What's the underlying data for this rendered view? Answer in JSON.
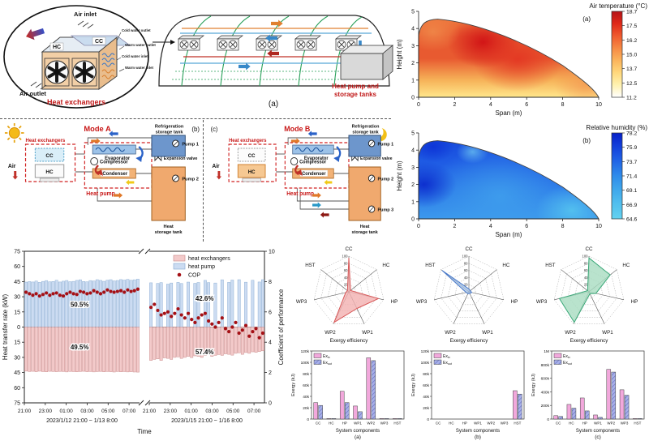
{
  "callout": {
    "air_inlet": "Air inlet",
    "cc": "CC",
    "hc": "HC",
    "cold_water_outlet": "Cold water outlet",
    "warm_water_outlet": "Warm water outlet",
    "cold_water_inlet": "Cold water inlet",
    "warm_water_inlet": "Warm water inlet",
    "air_outlet": "Air outlet",
    "title": "Heat exchangers"
  },
  "greenhouse": {
    "label_line1": "Heat pump and",
    "label_line2": "storage tanks",
    "panel_label": "(a)"
  },
  "mode_a": {
    "panel_label": "(b)",
    "title": "Mode A",
    "heat_exchangers": "Heat exchangers",
    "cc": "CC",
    "hc": "HC",
    "air": "Air",
    "evaporator": "Evaporator",
    "compressor": "Compressor",
    "condenser": "Condenser",
    "heat_pump": "Heat pump",
    "expansion_valve": "Expansion valve",
    "refrigeration_tank_line1": "Refrigeration",
    "refrigeration_tank_line2": "storage tank",
    "pump1": "Pump 1",
    "pump2": "Pump 2",
    "heat_tank_line1": "Heat",
    "heat_tank_line2": "storage tank"
  },
  "mode_b": {
    "panel_label": "(c)",
    "title": "Mode B",
    "heat_exchangers": "Heat exchangers",
    "cc": "CC",
    "hc": "HC",
    "air": "Air",
    "evaporator": "Evaporator",
    "compressor": "Compressor",
    "condenser": "Condenser",
    "heat_pump": "Heat pump",
    "expansion_valve": "Expansion valve",
    "refrigeration_tank_line1": "Refrigeration",
    "refrigeration_tank_line2": "storage tank",
    "pump1": "Pump 1",
    "pump2": "Pump 2",
    "pump3": "Pump 3",
    "heat_tank_line1": "Heat",
    "heat_tank_line2": "storage tank"
  },
  "chart_data": [
    {
      "type": "heatmap",
      "id": "air-temperature",
      "title": "Air temperature (°C)",
      "panel_label": "(a)",
      "xlabel": "Span (m)",
      "ylabel": "Height (m)",
      "xlim": [
        0,
        10
      ],
      "ylim": [
        0,
        5
      ],
      "xticks": [
        0,
        2,
        4,
        6,
        8,
        10
      ],
      "yticks": [
        0,
        1,
        2,
        3,
        4,
        5
      ],
      "colorbar": {
        "ticks": [
          18.7,
          17.5,
          16.2,
          15.0,
          13.7,
          12.5,
          11.2
        ],
        "stops": [
          "#b51318",
          "#e02818",
          "#ef5a2e",
          "#f68a44",
          "#fbb45c",
          "#ffd87c",
          "#fff2b0",
          "#ffffff"
        ]
      },
      "field": {
        "base_stops": [
          {
            "off": 0,
            "color": "#ef8140"
          },
          {
            "off": 0.3,
            "color": "#e85a30"
          },
          {
            "off": 0.55,
            "color": "#e85a30"
          },
          {
            "off": 0.8,
            "color": "#f6b258"
          },
          {
            "off": 1,
            "color": "#ffe78c"
          }
        ],
        "spots": [
          {
            "x": 3.6,
            "y": 3.2,
            "r": 2.0,
            "color": "#d01015",
            "opacity": 0.95
          },
          {
            "x": 5.5,
            "y": 2.2,
            "r": 2.5,
            "color": "#e23020",
            "opacity": 0.8
          },
          {
            "x": 0.8,
            "y": 3.8,
            "r": 1.5,
            "color": "#f08a4a",
            "opacity": 0.85
          },
          {
            "x": 9.3,
            "y": 0.8,
            "r": 1.8,
            "color": "#f49a52",
            "opacity": 0.85
          }
        ]
      },
      "reading": "hottest ~18.7 °C around span 3-4 m at height 3-3.5 m; coolest ~11-13 °C along the floor"
    },
    {
      "type": "heatmap",
      "id": "relative-humidity",
      "title": "Relative humidity (%)",
      "panel_label": "(b)",
      "xlabel": "Span (m)",
      "ylabel": "Height (m)",
      "xlim": [
        0,
        10
      ],
      "ylim": [
        0,
        5
      ],
      "xticks": [
        0,
        2,
        4,
        6,
        8,
        10
      ],
      "yticks": [
        0,
        1,
        2,
        3,
        4,
        5
      ],
      "colorbar": {
        "ticks": [
          78.2,
          75.9,
          73.7,
          71.4,
          69.1,
          66.9,
          64.6
        ],
        "stops": [
          "#0720c8",
          "#1442dc",
          "#2166e6",
          "#2f8cea",
          "#3fa8ec",
          "#52c0ee",
          "#63d2f0"
        ]
      },
      "field": {
        "base_stops": [
          {
            "off": 0,
            "color": "#1444da"
          },
          {
            "off": 0.35,
            "color": "#1f5ce4"
          },
          {
            "off": 0.7,
            "color": "#2e7ee9"
          },
          {
            "off": 1,
            "color": "#3c99ec"
          }
        ],
        "spots": [
          {
            "x": 4.5,
            "y": 1.3,
            "r": 4.0,
            "color": "#3f9eec",
            "opacity": 0.9
          },
          {
            "x": 3.0,
            "y": 3.9,
            "r": 0.9,
            "color": "#60b4ee",
            "opacity": 0.9
          },
          {
            "x": 8.5,
            "y": 0.5,
            "r": 2.0,
            "color": "#55c4ef",
            "opacity": 0.9
          },
          {
            "x": 0.3,
            "y": 2.0,
            "r": 1.8,
            "color": "#0a28cc",
            "opacity": 0.9
          },
          {
            "x": 0.8,
            "y": 4.2,
            "r": 1.2,
            "color": "#0d33d6",
            "opacity": 0.9
          }
        ]
      },
      "reading": "highest ~78% along left wall and edges; lowest ~65-69% in mid-low interior"
    },
    {
      "type": "combo_bars",
      "id": "heat-transfer",
      "ylabel": "Heat transfer rate (kW)",
      "y2label": "Coefficient of performance",
      "xlabel": "Time",
      "ylim": [
        -75,
        75
      ],
      "yticks": [
        75,
        60,
        45,
        30,
        15,
        0,
        15,
        30,
        45,
        60,
        75
      ],
      "y2lim": [
        0,
        10
      ],
      "y2ticks": [
        0,
        2,
        4,
        6,
        8,
        10
      ],
      "legend": [
        {
          "label": "heat exchangers",
          "color": "#f3caca",
          "border": "#cc8f8f"
        },
        {
          "label": "heat pump",
          "color": "#ccdcf2",
          "border": "#8fb0d4"
        },
        {
          "label": "COP",
          "color": "#a51015"
        }
      ],
      "groups": [
        {
          "date_label": "2023/1/12 21:00 ~ 1/13 8:00",
          "xticks": [
            "21:00",
            "23:00",
            "01:00",
            "03:00",
            "05:00",
            "07:00"
          ],
          "share_top": "50.5%",
          "share_bottom": "49.5%",
          "heat_pump_kw": [
            44.5,
            45,
            44.6,
            45.5,
            44.2,
            45.2,
            46,
            44.8,
            45.1,
            46.3,
            44.6,
            45.4,
            46.1,
            44.9,
            45.2,
            46.2,
            46.8,
            45.1,
            44.8,
            46,
            45.6,
            46.9,
            46.2,
            45.3,
            46.4,
            46.9,
            45.7,
            46.1,
            47,
            46.5,
            47.2,
            46.3,
            46.8,
            47.4
          ],
          "heat_exchangers_kw": [
            43.6,
            44,
            43.8,
            44.2,
            43.7,
            44.1,
            44.3,
            43.8,
            44,
            44.2,
            43.9,
            44,
            44.4,
            43.9,
            44.1,
            44.3,
            44,
            43.8,
            44.2,
            44,
            44.4,
            44.1,
            43.9,
            44.3,
            44,
            44.2,
            44.5,
            44,
            44.3,
            44.1,
            44.4,
            44.2,
            44.5,
            44.6
          ],
          "cop": [
            7.3,
            7.2,
            7.1,
            7.2,
            7.05,
            7.15,
            7.25,
            7.1,
            7.2,
            7.25,
            7.1,
            7.05,
            7.2,
            7.3,
            7.2,
            7.15,
            7.35,
            7.3,
            7.2,
            7.25,
            7.4,
            7.3,
            7.2,
            7.3,
            7.45,
            7.35,
            7.3,
            7.35,
            7.4,
            7.3,
            7.45,
            7.35,
            7.4,
            7.5
          ]
        },
        {
          "date_label": "2023/1/15 21:00 ~ 1/16 8:00",
          "xticks": [
            "21:00",
            "23:00",
            "01:00",
            "03:00",
            "05:00",
            "07:00"
          ],
          "share_top": "42.6%",
          "share_bottom": "57.4%",
          "heat_pump_kw": [
            43.8,
            0,
            43.2,
            44,
            0,
            42.5,
            43.6,
            0,
            44.2,
            43.1,
            0,
            44.5,
            0,
            43.3,
            44.1,
            0,
            46.2,
            44,
            0,
            43.6,
            0,
            46.8,
            0,
            44.2,
            46.5,
            0,
            46.9,
            0,
            44.4,
            0,
            46.3,
            0,
            44.6,
            46.9
          ],
          "heat_exchangers_kw": [
            33,
            32,
            31.5,
            33,
            30.5,
            31,
            32,
            30,
            29.5,
            31,
            30,
            29,
            30.2,
            28.5,
            29,
            30,
            28.2,
            27.5,
            29,
            28,
            27.2,
            28,
            26.5,
            27,
            27.8,
            26,
            25.5,
            27,
            25.2,
            26,
            24.5,
            25,
            24.2,
            23.5
          ],
          "cop": [
            6.3,
            6.5,
            6.1,
            5.8,
            5.9,
            6.0,
            5.7,
            5.9,
            6.2,
            5.8,
            5.6,
            5.9,
            5.5,
            5.3,
            5.6,
            5.8,
            5.9,
            5.4,
            5.2,
            5.0,
            5.3,
            5.6,
            4.9,
            4.7,
            5.0,
            5.3,
            4.6,
            4.8,
            5.1,
            4.4,
            4.7,
            4.9,
            4.3,
            4.6
          ]
        }
      ]
    },
    {
      "type": "radar",
      "id": "exergy-efficiency-mode-a",
      "axes": [
        "CC",
        "HC",
        "HP",
        "WP1",
        "WP2",
        "WP3",
        "HST"
      ],
      "ticks": [
        20,
        40,
        60,
        80,
        100
      ],
      "max": 100,
      "values": [
        95,
        6,
        85,
        52,
        95,
        9,
        5
      ],
      "color": "#d85858",
      "fill": "#f3b0b0",
      "caption": "Exergy efficiency"
    },
    {
      "type": "radar",
      "id": "exergy-efficiency-storage",
      "axes": [
        "CC",
        "HC",
        "HP",
        "WP1",
        "WP2",
        "WP3",
        "HST"
      ],
      "ticks": [
        20,
        40,
        60,
        80,
        100
      ],
      "max": 100,
      "values": [
        8,
        5,
        8,
        5,
        6,
        8,
        96
      ],
      "color": "#4878c8",
      "fill": "#a8c4e8",
      "caption": "Exergy efficiency"
    },
    {
      "type": "radar",
      "id": "exergy-efficiency-mode-b",
      "axes": [
        "CC",
        "HC",
        "HP",
        "WP1",
        "WP2",
        "WP3",
        "HST"
      ],
      "ticks": [
        20,
        40,
        60,
        80,
        100
      ],
      "max": 100,
      "values": [
        95,
        76,
        20,
        6,
        95,
        85,
        5
      ],
      "color": "#3aa878",
      "fill": "#a8dcc0",
      "caption": "Exergy efficiency"
    },
    {
      "type": "grouped_bars",
      "id": "exergy-components-a",
      "categories": [
        "CC",
        "HC",
        "HP",
        "WP1",
        "WP2",
        "WP3",
        "HST"
      ],
      "series": [
        {
          "name": "Ex_in",
          "label_main": "Ex",
          "label_sub": "in",
          "color": "#f2a8dc",
          "values": [
            29000,
            800,
            49000,
            23000,
            108000,
            800,
            500
          ]
        },
        {
          "name": "Ex_out",
          "label_main": "Ex",
          "label_sub": "out",
          "color": "#a8b0e8",
          "hatch": true,
          "values": [
            24000,
            500,
            29000,
            13000,
            103000,
            500,
            300
          ]
        }
      ],
      "ylabel": "Exergy (kJ)",
      "xlabel": "System components",
      "panel_label": "(a)",
      "ylim": [
        0,
        120000
      ],
      "yticks": [
        0,
        20000,
        40000,
        60000,
        80000,
        100000,
        120000
      ]
    },
    {
      "type": "grouped_bars",
      "id": "exergy-components-b",
      "categories": [
        "CC",
        "HC",
        "HP",
        "WP1",
        "WP2",
        "WP3",
        "HST"
      ],
      "series": [
        {
          "name": "Ex_in",
          "label_main": "Ex",
          "label_sub": "in",
          "color": "#f2a8dc",
          "values": [
            0,
            0,
            0,
            0,
            0,
            0,
            50000
          ]
        },
        {
          "name": "Ex_out",
          "label_main": "Ex",
          "label_sub": "out",
          "color": "#a8b0e8",
          "hatch": true,
          "values": [
            0,
            0,
            0,
            0,
            0,
            0,
            44000
          ]
        }
      ],
      "ylabel": "Exergy (kJ)",
      "xlabel": "System components",
      "panel_label": "(b)",
      "ylim": [
        0,
        120000
      ],
      "yticks": [
        0,
        20000,
        40000,
        60000,
        80000,
        100000,
        120000
      ]
    },
    {
      "type": "grouped_bars",
      "id": "exergy-components-c",
      "categories": [
        "CC",
        "HC",
        "HP",
        "WP1",
        "WP2",
        "WP3",
        "HST"
      ],
      "series": [
        {
          "name": "Ex_in",
          "label_main": "Ex",
          "label_sub": "in",
          "color": "#f2a8dc",
          "values": [
            50000,
            215000,
            310000,
            60000,
            730000,
            430000,
            4000
          ]
        },
        {
          "name": "Ex_out",
          "label_main": "Ex",
          "label_sub": "out",
          "color": "#a8b0e8",
          "hatch": true,
          "values": [
            38000,
            160000,
            120000,
            25000,
            690000,
            350000,
            2000
          ]
        }
      ],
      "ylabel": "Exergy (kJ)",
      "xlabel": "System components",
      "panel_label": "(c)",
      "ylim": [
        0,
        1000000
      ],
      "yticks": [
        0,
        200000,
        400000,
        600000,
        800000,
        1000000
      ]
    }
  ]
}
